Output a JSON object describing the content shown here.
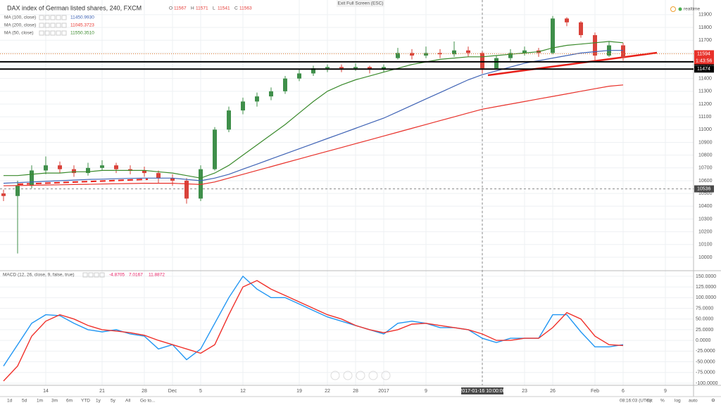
{
  "ui": {
    "fullscreen": "Exit Full Screen (ESC)",
    "realtime": "realtime",
    "ohlc": [
      "O",
      "11567",
      "H",
      "11571",
      "L",
      "11541",
      "C",
      "11563"
    ],
    "countdown": "1:43:56",
    "toolbar": [
      "1d",
      "5d",
      "1m",
      "3m",
      "6m",
      "YTD",
      "1y",
      "5y",
      "All",
      "Go to..."
    ],
    "clock": "08:16:03 (UTC)",
    "toolbar_right": [
      "ext",
      "%",
      "log",
      "auto"
    ]
  },
  "chart_data": [
    {
      "type": "candlestick",
      "title": "DAX index of German listed shares, 240, FXCM",
      "categories": [
        null,
        null,
        null,
        "14",
        null,
        null,
        null,
        "21",
        null,
        null,
        "28",
        null,
        "Dec",
        null,
        "5",
        null,
        null,
        "12",
        null,
        null,
        null,
        "19",
        null,
        "22",
        null,
        "28",
        null,
        "2017",
        null,
        null,
        "9",
        null,
        null,
        null,
        "2017-01-16 10:00:00",
        null,
        null,
        "23",
        null,
        "26",
        null,
        null,
        "Feb",
        null,
        "6",
        null,
        null,
        "9"
      ],
      "open": [
        10500,
        10480,
        10560,
        10680,
        10720,
        10690,
        10660,
        10700,
        10720,
        10690,
        10680,
        10660,
        10620,
        10600,
        10460,
        10690,
        11000,
        11150,
        11220,
        11260,
        11300,
        11400,
        11440,
        11480,
        11490,
        11480,
        11490,
        11470,
        11560,
        11600,
        11580,
        11600,
        11590,
        11620,
        11600,
        11480,
        11560,
        11600,
        11620,
        11600,
        11870,
        11840,
        11740,
        11580,
        11660,
        null,
        null,
        null
      ],
      "high": [
        10530,
        10600,
        10720,
        10790,
        10750,
        10720,
        10740,
        10760,
        10740,
        10720,
        10710,
        10680,
        10650,
        10620,
        10720,
        11020,
        11180,
        11250,
        11290,
        11330,
        11420,
        11470,
        11500,
        11510,
        11510,
        11520,
        11500,
        11510,
        11640,
        11630,
        11650,
        11630,
        11690,
        11650,
        11610,
        11580,
        11630,
        11650,
        11640,
        11890,
        11880,
        11850,
        11760,
        11690,
        11680,
        null,
        null,
        null
      ],
      "low": [
        10440,
        10030,
        10540,
        10650,
        10660,
        10630,
        10640,
        10680,
        10660,
        10650,
        10630,
        10580,
        10560,
        10420,
        10440,
        10680,
        10980,
        11120,
        11180,
        11230,
        11280,
        11380,
        11420,
        11450,
        11450,
        11460,
        11440,
        11450,
        11550,
        11550,
        11560,
        11560,
        11570,
        11570,
        11440,
        11470,
        11540,
        11580,
        11570,
        11590,
        11810,
        11720,
        11540,
        11570,
        11540,
        null,
        null,
        null
      ],
      "close": [
        10480,
        10560,
        10680,
        10720,
        10690,
        10660,
        10700,
        10720,
        10690,
        10680,
        10660,
        10620,
        10600,
        10460,
        10690,
        11000,
        11150,
        11220,
        11260,
        11300,
        11400,
        11440,
        11480,
        11490,
        11480,
        11490,
        11470,
        11490,
        11600,
        11580,
        11600,
        11590,
        11620,
        11600,
        11480,
        11560,
        11600,
        11620,
        11600,
        11870,
        11840,
        11740,
        11580,
        11660,
        11560,
        null,
        null,
        null
      ],
      "up_color": "#3f8f4a",
      "down_color": "#d9423a",
      "series": [
        {
          "name": "MA (100, close)",
          "color": "#3f63b5",
          "legend_value": "11450.9930",
          "values": [
            10580,
            10585,
            10590,
            10595,
            10600,
            10605,
            10610,
            10612,
            10615,
            10618,
            10620,
            10620,
            10620,
            10610,
            10600,
            10620,
            10650,
            10690,
            10730,
            10770,
            10810,
            10850,
            10890,
            10930,
            10970,
            11010,
            11050,
            11090,
            11140,
            11190,
            11240,
            11290,
            11340,
            11390,
            11430,
            11460,
            11490,
            11520,
            11540,
            11560,
            11580,
            11600,
            11610,
            11620,
            11620,
            null,
            null,
            null
          ]
        },
        {
          "name": "MA (200, close)",
          "color": "#e8312a",
          "legend_value": "11045.3723",
          "values": [
            10560,
            10562,
            10564,
            10566,
            10568,
            10570,
            10572,
            10574,
            10576,
            10578,
            10580,
            10580,
            10580,
            10575,
            10570,
            10590,
            10620,
            10650,
            10680,
            10710,
            10740,
            10770,
            10800,
            10830,
            10860,
            10890,
            10920,
            10950,
            10980,
            11010,
            11040,
            11070,
            11100,
            11130,
            11160,
            11180,
            11200,
            11220,
            11240,
            11260,
            11280,
            11300,
            11320,
            11340,
            11350,
            null,
            null,
            null
          ]
        },
        {
          "name": "MA (50, close)",
          "color": "#3a8a2c",
          "legend_value": "11550.3510",
          "values": [
            10640,
            10640,
            10650,
            10660,
            10660,
            10670,
            10670,
            10680,
            10680,
            10680,
            10680,
            10670,
            10660,
            10640,
            10620,
            10660,
            10720,
            10800,
            10880,
            10960,
            11040,
            11130,
            11220,
            11300,
            11350,
            11390,
            11420,
            11450,
            11480,
            11510,
            11530,
            11550,
            11560,
            11570,
            11570,
            11580,
            11590,
            11600,
            11610,
            11640,
            11660,
            11670,
            11680,
            11690,
            11680,
            null,
            null,
            null
          ]
        }
      ],
      "ylim": [
        9895,
        12015
      ],
      "yticks": [
        11900,
        11800,
        11700,
        11600,
        11500,
        11400,
        11300,
        11200,
        11100,
        11000,
        10900,
        10800,
        10700,
        10600,
        10500,
        10400,
        10300,
        10200,
        10100,
        10000
      ],
      "last_price": 11594,
      "levels": [
        11531,
        11474
      ],
      "crosshair_price": 10536
    },
    {
      "type": "line",
      "title": "MACD (12, 26, close, 9, false, true)",
      "legend_values": [
        "-4.8705",
        "7.0167",
        "11.8872"
      ],
      "series": [
        {
          "color": "#2196f3",
          "values": [
            -60,
            -10,
            40,
            60,
            58,
            40,
            25,
            20,
            25,
            15,
            10,
            -20,
            -10,
            -45,
            -20,
            40,
            100,
            150,
            120,
            100,
            100,
            85,
            70,
            55,
            45,
            35,
            25,
            15,
            40,
            45,
            40,
            30,
            30,
            25,
            5,
            -5,
            5,
            5,
            5,
            60,
            60,
            20,
            -15,
            -15,
            -10,
            null,
            null,
            null
          ]
        },
        {
          "color": "#f0302a",
          "values": [
            -95,
            -60,
            10,
            45,
            60,
            50,
            35,
            25,
            22,
            18,
            12,
            0,
            -10,
            -20,
            -30,
            -10,
            60,
            125,
            140,
            120,
            105,
            90,
            75,
            60,
            50,
            35,
            25,
            18,
            25,
            38,
            40,
            35,
            30,
            25,
            15,
            0,
            0,
            5,
            5,
            30,
            65,
            50,
            10,
            -10,
            -12,
            null,
            null,
            null
          ]
        }
      ],
      "ylim": [
        -105,
        163
      ],
      "yticks": [
        {
          "value": 150,
          "label": "150.0000"
        },
        {
          "value": 125,
          "label": "125.0000"
        },
        {
          "value": 100,
          "label": "100.0000"
        },
        {
          "value": 75,
          "label": "75.0000"
        },
        {
          "value": 50,
          "label": "50.0000"
        },
        {
          "value": 25,
          "label": "25.0000"
        },
        {
          "value": 0,
          "label": "0.0000"
        },
        {
          "value": -25,
          "label": "-25.0000"
        },
        {
          "value": -50,
          "label": "-50.0000"
        },
        {
          "value": -75,
          "label": "-75.0000"
        },
        {
          "value": -100,
          "label": "-100.0000"
        }
      ]
    }
  ]
}
